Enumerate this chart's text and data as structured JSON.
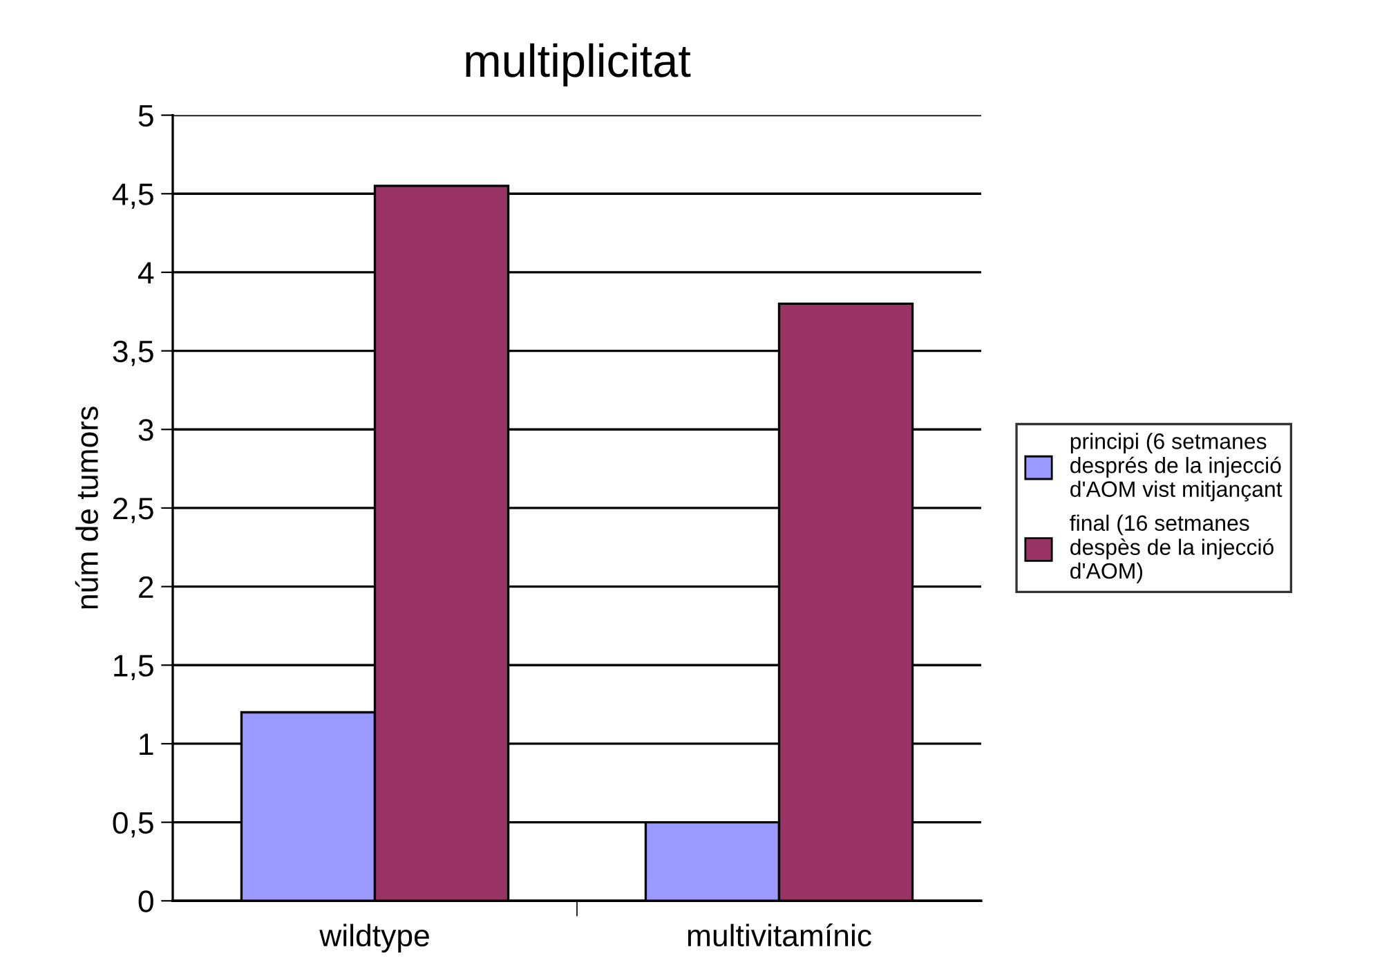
{
  "chart_data": {
    "type": "bar",
    "title": "multiplicitat",
    "ylabel": "núm de tumors",
    "categories": [
      "wildtype",
      "multivitamínic"
    ],
    "series": [
      {
        "name": "principi (6 setmanes\ndesprés de la injecció\nd'AOM vist mitjançant",
        "color": "#9999ff",
        "values": [
          1.2,
          0.5
        ]
      },
      {
        "name": "final (16 setmanes\ndespès de la injecció\nd'AOM)",
        "color": "#993366",
        "values": [
          4.55,
          3.8
        ]
      }
    ],
    "ylim": [
      0,
      5
    ],
    "yticks": [
      0,
      {
        "value": 0.5,
        "label": "0,5"
      },
      1,
      {
        "value": 1.5,
        "label": "1,5"
      },
      2,
      {
        "value": 2.5,
        "label": "2,5"
      },
      3,
      {
        "value": 3.5,
        "label": "3,5"
      },
      4,
      {
        "value": 4.5,
        "label": "4,5"
      },
      5
    ],
    "grid": "y",
    "legend": "right"
  }
}
